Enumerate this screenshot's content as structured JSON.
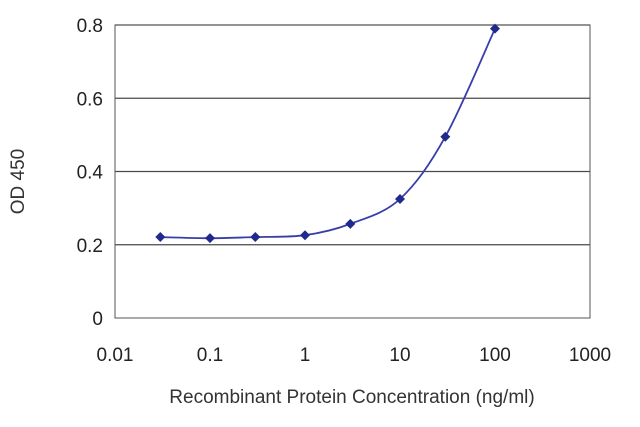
{
  "chart_data": {
    "type": "line",
    "title": "",
    "xlabel": "Recombinant Protein Concentration (ng/ml)",
    "ylabel": "OD 450",
    "x_scale": "log",
    "xlim": [
      0.01,
      1000
    ],
    "ylim": [
      0,
      0.8
    ],
    "x_ticks": [
      0.01,
      0.1,
      1,
      10,
      100,
      1000
    ],
    "x_tick_labels": [
      "0.01",
      "0.1",
      "1",
      "10",
      "100",
      "1000"
    ],
    "y_ticks": [
      0,
      0.2,
      0.4,
      0.6,
      0.8
    ],
    "y_tick_labels": [
      "0",
      "0.2",
      "0.4",
      "0.6",
      "0.8"
    ],
    "grid": "horizontal",
    "series": [
      {
        "x": [
          0.03,
          0.1,
          0.3,
          1,
          3,
          10,
          30,
          100
        ],
        "y": [
          0.221,
          0.218,
          0.221,
          0.226,
          0.257,
          0.325,
          0.495,
          0.79
        ],
        "color": "#1f2a8c",
        "marker": "diamond"
      }
    ]
  }
}
